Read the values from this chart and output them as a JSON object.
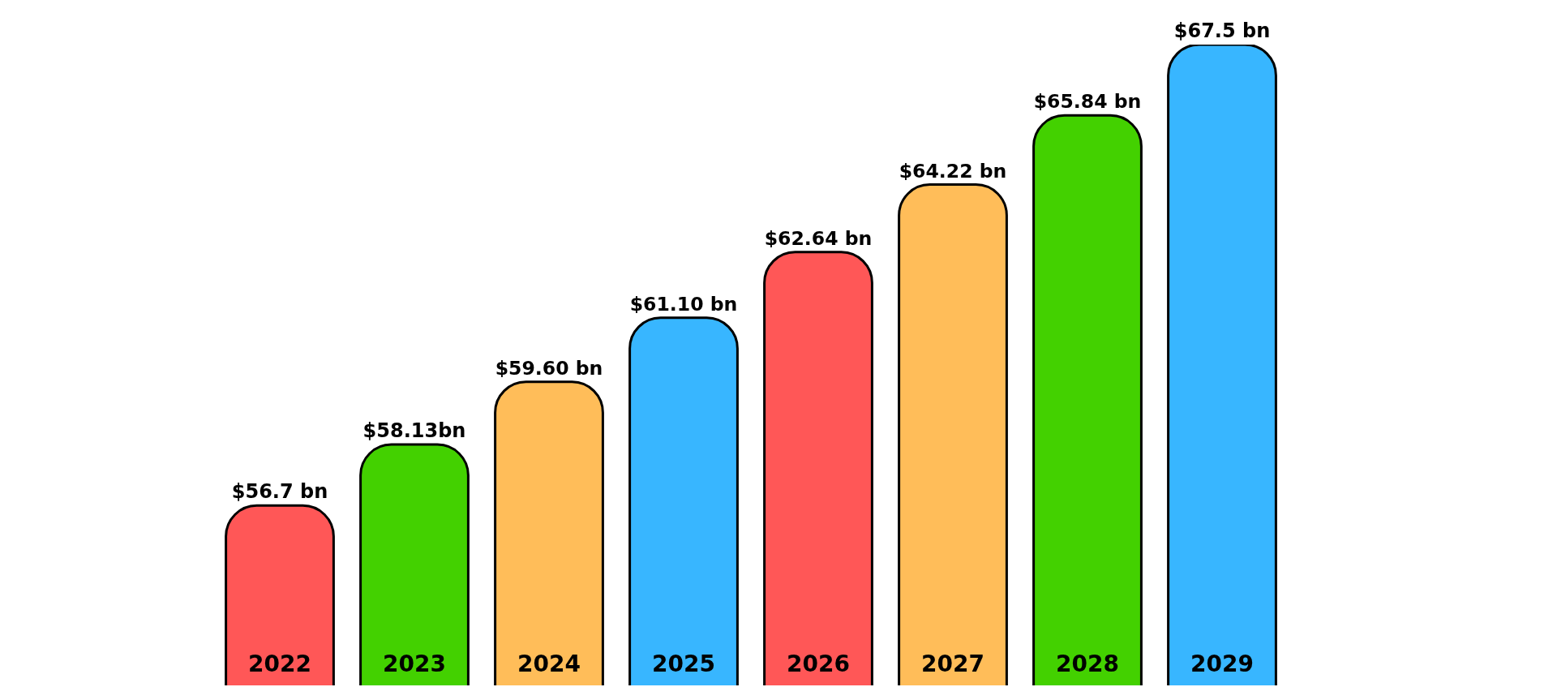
{
  "chart_data": {
    "type": "bar",
    "categories": [
      "2022",
      "2023",
      "2024",
      "2025",
      "2026",
      "2027",
      "2028",
      "2029"
    ],
    "values": [
      56.7,
      58.13,
      59.6,
      61.1,
      62.64,
      64.22,
      65.84,
      67.5
    ],
    "colors": [
      "#ff5757",
      "#43d100",
      "#ffbd59",
      "#38b6ff",
      "#ff5757",
      "#ffbd59",
      "#43d100",
      "#38b6ff"
    ],
    "value_labels": [
      "$56.7 bn",
      "$58.13bn",
      "$59.60 bn",
      "$61.10 bn",
      "$62.64 bn",
      "$64.22 bn",
      "$65.84 bn",
      "$67.5 bn"
    ],
    "tick_labels": "x"
  }
}
